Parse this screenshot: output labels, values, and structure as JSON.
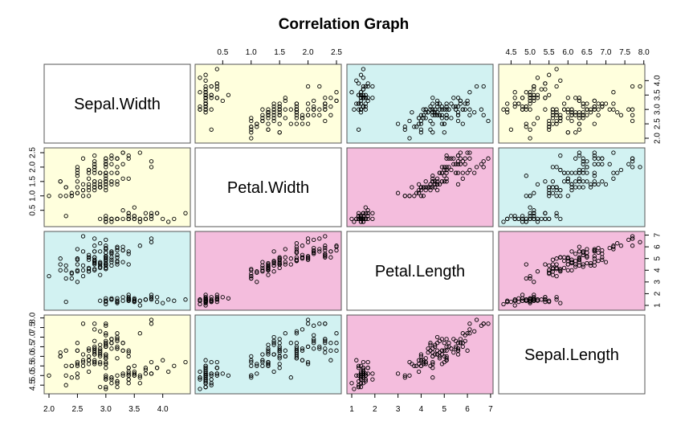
{
  "chart_data": {
    "type": "scatter",
    "subtype": "scatterplot-matrix",
    "title": "Correlation Graph",
    "variables": [
      "Sepal.Width",
      "Petal.Width",
      "Petal.Length",
      "Sepal.Length"
    ],
    "ranges": {
      "Sepal.Width": [
        2.0,
        4.4
      ],
      "Petal.Width": [
        0.1,
        2.5
      ],
      "Petal.Length": [
        1.0,
        6.9
      ],
      "Sepal.Length": [
        4.3,
        7.9
      ]
    },
    "ticks": {
      "Sepal.Width": [
        "2.0",
        "2.5",
        "3.0",
        "3.5",
        "4.0"
      ],
      "Petal.Width": [
        "0.5",
        "1.0",
        "1.5",
        "2.0",
        "2.5"
      ],
      "Petal.Length": [
        "1",
        "2",
        "3",
        "4",
        "5",
        "6",
        "7"
      ],
      "Sepal.Length": [
        "4.5",
        "5.0",
        "5.5",
        "6.0",
        "6.5",
        "7.0",
        "7.5",
        "8.0"
      ]
    },
    "panel_colors": {
      "Sepal.Width|Petal.Width": "#ffffdd",
      "Sepal.Width|Petal.Length": "#d2f2f2",
      "Sepal.Width|Sepal.Length": "#ffffdd",
      "Petal.Width|Petal.Length": "#f4bddd",
      "Petal.Width|Sepal.Length": "#d2f2f2",
      "Petal.Length|Sepal.Length": "#f4bddd"
    },
    "grid": false,
    "legend": "none",
    "observations": {
      "fields": [
        "Sepal.Length",
        "Sepal.Width",
        "Petal.Length",
        "Petal.Width"
      ],
      "rows": [
        [
          5.1,
          3.5,
          1.4,
          0.2
        ],
        [
          4.9,
          3.0,
          1.4,
          0.2
        ],
        [
          4.7,
          3.2,
          1.3,
          0.2
        ],
        [
          4.6,
          3.1,
          1.5,
          0.2
        ],
        [
          5.0,
          3.6,
          1.4,
          0.2
        ],
        [
          5.4,
          3.9,
          1.7,
          0.4
        ],
        [
          4.6,
          3.4,
          1.4,
          0.3
        ],
        [
          5.0,
          3.4,
          1.5,
          0.2
        ],
        [
          4.4,
          2.9,
          1.4,
          0.2
        ],
        [
          4.9,
          3.1,
          1.5,
          0.1
        ],
        [
          5.4,
          3.7,
          1.5,
          0.2
        ],
        [
          4.8,
          3.4,
          1.6,
          0.2
        ],
        [
          4.8,
          3.0,
          1.4,
          0.1
        ],
        [
          4.3,
          3.0,
          1.1,
          0.1
        ],
        [
          5.8,
          4.0,
          1.2,
          0.2
        ],
        [
          5.7,
          4.4,
          1.5,
          0.4
        ],
        [
          5.4,
          3.9,
          1.3,
          0.4
        ],
        [
          5.1,
          3.5,
          1.4,
          0.3
        ],
        [
          5.7,
          3.8,
          1.7,
          0.3
        ],
        [
          5.1,
          3.8,
          1.5,
          0.3
        ],
        [
          5.4,
          3.4,
          1.7,
          0.2
        ],
        [
          5.1,
          3.7,
          1.5,
          0.4
        ],
        [
          4.6,
          3.6,
          1.0,
          0.2
        ],
        [
          5.1,
          3.3,
          1.7,
          0.5
        ],
        [
          4.8,
          3.4,
          1.9,
          0.2
        ],
        [
          5.0,
          3.0,
          1.6,
          0.2
        ],
        [
          5.0,
          3.4,
          1.6,
          0.4
        ],
        [
          5.2,
          3.5,
          1.5,
          0.2
        ],
        [
          5.2,
          3.4,
          1.4,
          0.2
        ],
        [
          4.7,
          3.2,
          1.6,
          0.2
        ],
        [
          4.8,
          3.1,
          1.6,
          0.2
        ],
        [
          5.4,
          3.4,
          1.5,
          0.4
        ],
        [
          5.2,
          4.1,
          1.5,
          0.1
        ],
        [
          5.5,
          4.2,
          1.4,
          0.2
        ],
        [
          4.9,
          3.1,
          1.5,
          0.2
        ],
        [
          5.0,
          3.2,
          1.2,
          0.2
        ],
        [
          5.5,
          3.5,
          1.3,
          0.2
        ],
        [
          4.9,
          3.6,
          1.4,
          0.1
        ],
        [
          4.4,
          3.0,
          1.3,
          0.2
        ],
        [
          5.1,
          3.4,
          1.5,
          0.2
        ],
        [
          5.0,
          3.5,
          1.3,
          0.3
        ],
        [
          4.5,
          2.3,
          1.3,
          0.3
        ],
        [
          4.4,
          3.2,
          1.3,
          0.2
        ],
        [
          5.0,
          3.5,
          1.6,
          0.6
        ],
        [
          5.1,
          3.8,
          1.9,
          0.4
        ],
        [
          4.8,
          3.0,
          1.4,
          0.3
        ],
        [
          5.1,
          3.8,
          1.6,
          0.2
        ],
        [
          4.6,
          3.2,
          1.4,
          0.2
        ],
        [
          5.3,
          3.7,
          1.5,
          0.2
        ],
        [
          5.0,
          3.3,
          1.4,
          0.2
        ],
        [
          7.0,
          3.2,
          4.7,
          1.4
        ],
        [
          6.4,
          3.2,
          4.5,
          1.5
        ],
        [
          6.9,
          3.1,
          4.9,
          1.5
        ],
        [
          5.5,
          2.3,
          4.0,
          1.3
        ],
        [
          6.5,
          2.8,
          4.6,
          1.5
        ],
        [
          5.7,
          2.8,
          4.5,
          1.3
        ],
        [
          6.3,
          3.3,
          4.7,
          1.6
        ],
        [
          4.9,
          2.4,
          3.3,
          1.0
        ],
        [
          6.6,
          2.9,
          4.6,
          1.3
        ],
        [
          5.2,
          2.7,
          3.9,
          1.4
        ],
        [
          5.0,
          2.0,
          3.5,
          1.0
        ],
        [
          5.9,
          3.0,
          4.2,
          1.5
        ],
        [
          6.0,
          2.2,
          4.0,
          1.0
        ],
        [
          6.1,
          2.9,
          4.7,
          1.4
        ],
        [
          5.6,
          2.9,
          3.6,
          1.3
        ],
        [
          6.7,
          3.1,
          4.4,
          1.4
        ],
        [
          5.6,
          3.0,
          4.5,
          1.5
        ],
        [
          5.8,
          2.7,
          4.1,
          1.0
        ],
        [
          6.2,
          2.2,
          4.5,
          1.5
        ],
        [
          5.6,
          2.5,
          3.9,
          1.1
        ],
        [
          5.9,
          3.2,
          4.8,
          1.8
        ],
        [
          6.1,
          2.8,
          4.0,
          1.3
        ],
        [
          6.3,
          2.5,
          4.9,
          1.5
        ],
        [
          6.1,
          2.8,
          4.7,
          1.2
        ],
        [
          6.4,
          2.9,
          4.3,
          1.3
        ],
        [
          6.6,
          3.0,
          4.4,
          1.4
        ],
        [
          6.8,
          2.8,
          4.8,
          1.4
        ],
        [
          6.7,
          3.0,
          5.0,
          1.7
        ],
        [
          6.0,
          2.9,
          4.5,
          1.5
        ],
        [
          5.7,
          2.6,
          3.5,
          1.0
        ],
        [
          5.5,
          2.4,
          3.8,
          1.1
        ],
        [
          5.5,
          2.4,
          3.7,
          1.0
        ],
        [
          5.8,
          2.7,
          3.9,
          1.2
        ],
        [
          6.0,
          2.7,
          5.1,
          1.6
        ],
        [
          5.4,
          3.0,
          4.5,
          1.5
        ],
        [
          6.0,
          3.4,
          4.5,
          1.6
        ],
        [
          6.7,
          3.1,
          4.7,
          1.5
        ],
        [
          6.3,
          2.3,
          4.4,
          1.3
        ],
        [
          5.6,
          3.0,
          4.1,
          1.3
        ],
        [
          5.5,
          2.5,
          4.0,
          1.3
        ],
        [
          5.5,
          2.6,
          4.4,
          1.2
        ],
        [
          6.1,
          3.0,
          4.6,
          1.4
        ],
        [
          5.8,
          2.6,
          4.0,
          1.2
        ],
        [
          5.0,
          2.3,
          3.3,
          1.0
        ],
        [
          5.6,
          2.7,
          4.2,
          1.3
        ],
        [
          5.7,
          3.0,
          4.2,
          1.2
        ],
        [
          5.7,
          2.9,
          4.2,
          1.3
        ],
        [
          6.2,
          2.9,
          4.3,
          1.3
        ],
        [
          5.1,
          2.5,
          3.0,
          1.1
        ],
        [
          5.7,
          2.8,
          4.1,
          1.3
        ],
        [
          6.3,
          3.3,
          6.0,
          2.5
        ],
        [
          5.8,
          2.7,
          5.1,
          1.9
        ],
        [
          7.1,
          3.0,
          5.9,
          2.1
        ],
        [
          6.3,
          2.9,
          5.6,
          1.8
        ],
        [
          6.5,
          3.0,
          5.8,
          2.2
        ],
        [
          7.6,
          3.0,
          6.6,
          2.1
        ],
        [
          4.9,
          2.5,
          4.5,
          1.7
        ],
        [
          7.3,
          2.9,
          6.3,
          1.8
        ],
        [
          6.7,
          2.5,
          5.8,
          1.8
        ],
        [
          7.2,
          3.6,
          6.1,
          2.5
        ],
        [
          6.5,
          3.2,
          5.1,
          2.0
        ],
        [
          6.4,
          2.7,
          5.3,
          1.9
        ],
        [
          6.8,
          3.0,
          5.5,
          2.1
        ],
        [
          5.7,
          2.5,
          5.0,
          2.0
        ],
        [
          5.8,
          2.8,
          5.1,
          2.4
        ],
        [
          6.4,
          3.2,
          5.3,
          2.3
        ],
        [
          6.5,
          3.0,
          5.5,
          1.8
        ],
        [
          7.7,
          3.8,
          6.7,
          2.2
        ],
        [
          7.7,
          2.6,
          6.9,
          2.3
        ],
        [
          6.0,
          2.2,
          5.0,
          1.5
        ],
        [
          6.9,
          3.2,
          5.7,
          2.3
        ],
        [
          5.6,
          2.8,
          4.9,
          2.0
        ],
        [
          7.7,
          2.8,
          6.7,
          2.0
        ],
        [
          6.3,
          2.7,
          4.9,
          1.8
        ],
        [
          6.7,
          3.3,
          5.7,
          2.1
        ],
        [
          7.2,
          3.2,
          6.0,
          1.8
        ],
        [
          6.2,
          2.8,
          4.8,
          1.8
        ],
        [
          6.1,
          3.0,
          4.9,
          1.8
        ],
        [
          6.4,
          2.8,
          5.6,
          2.1
        ],
        [
          7.2,
          3.0,
          5.8,
          1.6
        ],
        [
          7.4,
          2.8,
          6.1,
          1.9
        ],
        [
          7.9,
          3.8,
          6.4,
          2.0
        ],
        [
          6.4,
          2.8,
          5.6,
          2.2
        ],
        [
          6.3,
          2.8,
          5.1,
          1.5
        ],
        [
          6.1,
          2.6,
          5.6,
          1.4
        ],
        [
          7.7,
          3.0,
          6.1,
          2.3
        ],
        [
          6.3,
          3.4,
          5.6,
          2.4
        ],
        [
          6.4,
          3.1,
          5.5,
          1.8
        ],
        [
          6.0,
          3.0,
          4.8,
          1.8
        ],
        [
          6.9,
          3.1,
          5.4,
          2.1
        ],
        [
          6.7,
          3.1,
          5.6,
          2.4
        ],
        [
          6.9,
          3.1,
          5.1,
          2.3
        ],
        [
          5.8,
          2.7,
          5.1,
          1.9
        ],
        [
          6.8,
          3.2,
          5.9,
          2.3
        ],
        [
          6.7,
          3.3,
          5.7,
          2.5
        ],
        [
          6.7,
          3.0,
          5.2,
          2.3
        ],
        [
          6.3,
          2.5,
          5.0,
          1.9
        ],
        [
          6.5,
          3.0,
          5.2,
          2.0
        ],
        [
          6.2,
          3.4,
          5.4,
          2.3
        ],
        [
          5.9,
          3.0,
          5.1,
          1.8
        ]
      ]
    }
  }
}
